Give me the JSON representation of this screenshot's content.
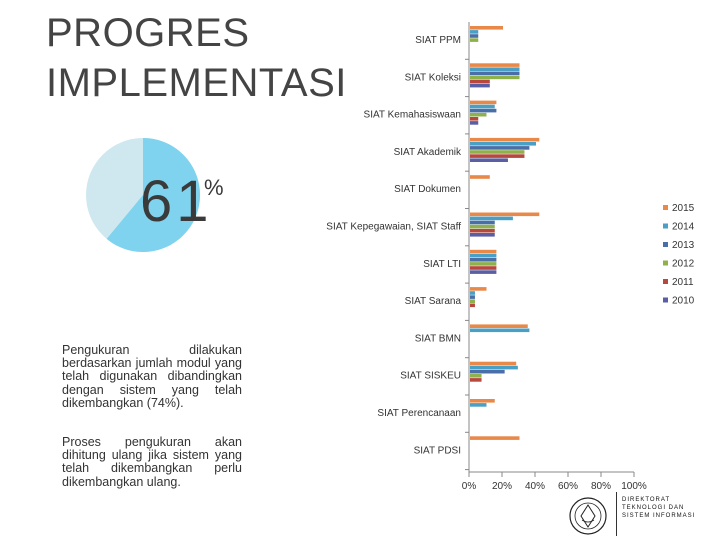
{
  "slide": {
    "title_line1": "PROGRES",
    "title_line2": "IMPLEMENTASI",
    "percent_value": "61",
    "percent_sign": "%",
    "paragraph1": "Pengukuran dilakukan berdasarkan jumlah modul yang telah digunakan dibandingkan dengan sistem yang telah dikembangkan (74%).",
    "paragraph2": "Proses pengukuran akan dihitung ulang jika sistem yang telah dikembangkan perlu dikembangkan ulang.",
    "logo_text": "DIREKTORAT TEKNOLOGI DAN SISTEM INFORMASI"
  },
  "pie": {
    "filled_percent": 61,
    "fill_color": "#7fd3ee",
    "rest_color": "#cfe8ef"
  },
  "chart_data": {
    "type": "bar",
    "orientation": "horizontal",
    "x_ticks": [
      "0%",
      "20%",
      "40%",
      "60%",
      "80%",
      "100%"
    ],
    "xlim": [
      0,
      100
    ],
    "categories": [
      "SIAT PPM",
      "SIAT Koleksi",
      "SIAT Kemahasiswaan",
      "SIAT Akademik",
      "SIAT Dokumen",
      "SIAT Kepegawaian, SIAT Staff",
      "SIAT LTI",
      "SIAT Sarana",
      "SIAT BMN",
      "SIAT SISKEU",
      "SIAT Perencanaan",
      "SIAT PDSI"
    ],
    "series": [
      {
        "name": "2015",
        "color": "#e8894a",
        "values": [
          20,
          30,
          16,
          42,
          12,
          42,
          16,
          10,
          35,
          28,
          15,
          30
        ]
      },
      {
        "name": "2014",
        "color": "#4a9fc4",
        "values": [
          5,
          30,
          15,
          40,
          0,
          26,
          16,
          3,
          36,
          29,
          10,
          0
        ]
      },
      {
        "name": "2013",
        "color": "#4a6fa8",
        "values": [
          5,
          30,
          16,
          36,
          0,
          15,
          16,
          3,
          0,
          21,
          0,
          0
        ]
      },
      {
        "name": "2012",
        "color": "#8fb14c",
        "values": [
          5,
          30,
          10,
          33,
          0,
          15,
          16,
          3,
          0,
          7,
          0,
          0
        ]
      },
      {
        "name": "2011",
        "color": "#b8473d",
        "values": [
          0,
          12,
          5,
          33,
          0,
          15,
          16,
          3,
          0,
          7,
          0,
          0
        ]
      },
      {
        "name": "2010",
        "color": "#5a5fa4",
        "values": [
          0,
          12,
          5,
          23,
          0,
          15,
          16,
          0,
          0,
          0,
          0,
          0
        ]
      }
    ]
  }
}
